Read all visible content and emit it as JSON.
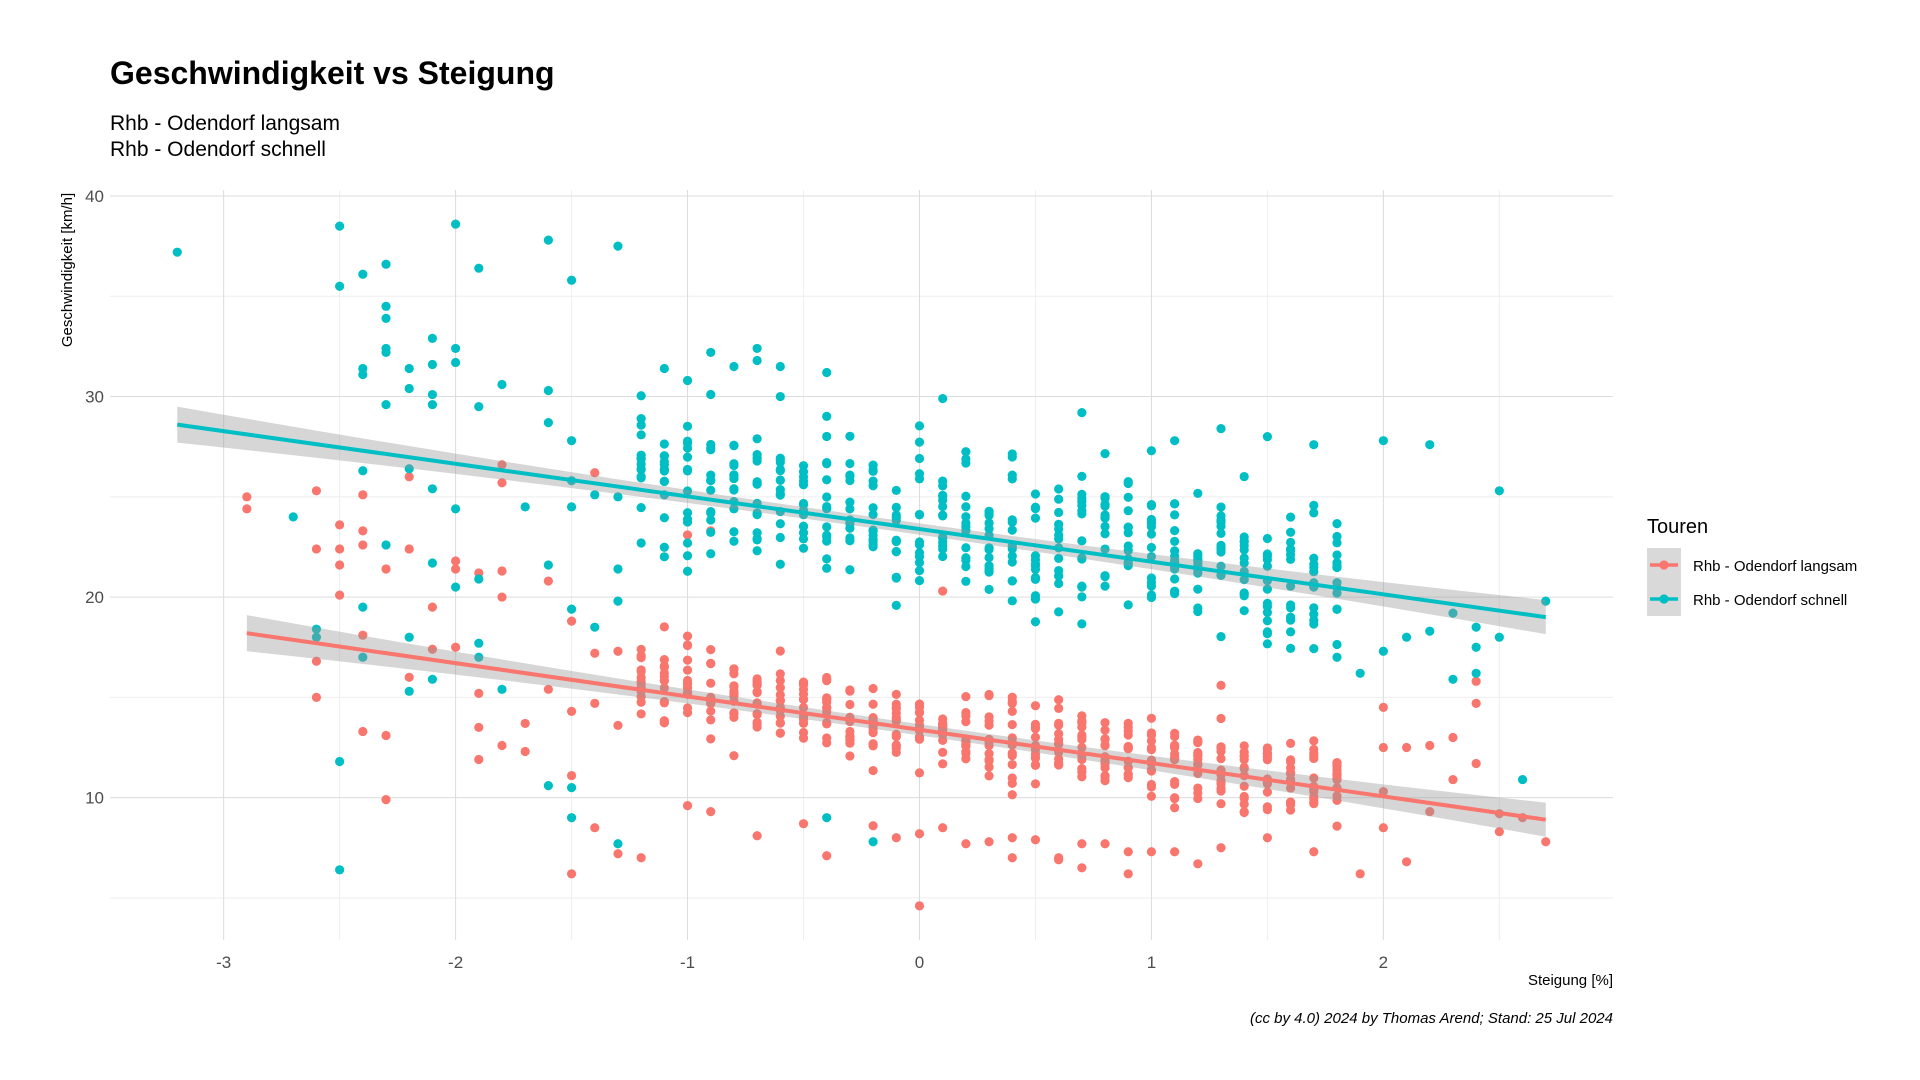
{
  "chart_data": {
    "type": "scatter",
    "title": "Geschwindigkeit vs Steigung",
    "subtitle_lines": [
      "Rhb - Odendorf langsam",
      "Rhb - Odendorf schnell"
    ],
    "xlabel": "Steigung [%]",
    "ylabel": "Geschwindigkeit [km/h]",
    "caption": "(cc by 4.0) 2024 by Thomas Arend; Stand: 25 Jul 2024",
    "xlim": [
      -3.49,
      2.99
    ],
    "ylim": [
      2.9,
      40.3
    ],
    "x_ticks": [
      -3,
      -2,
      -1,
      0,
      1,
      2
    ],
    "y_ticks": [
      10,
      20,
      30,
      40
    ],
    "grid": true,
    "legend": {
      "title": "Touren",
      "position": "right"
    },
    "series": [
      {
        "name": "Rhb - Odendorf langsam",
        "color": "#F8766D",
        "trend": {
          "x": [
            -2.9,
            2.7
          ],
          "y": [
            18.2,
            8.9
          ]
        },
        "points_explicit": [
          [
            -2.9,
            25.0
          ],
          [
            -2.9,
            24.4
          ],
          [
            -2.6,
            25.3
          ],
          [
            -2.6,
            22.4
          ],
          [
            -2.6,
            16.8
          ],
          [
            -2.6,
            15.0
          ],
          [
            -2.5,
            23.6
          ],
          [
            -2.5,
            22.4
          ],
          [
            -2.5,
            21.6
          ],
          [
            -2.5,
            20.1
          ],
          [
            -2.4,
            25.1
          ],
          [
            -2.4,
            23.3
          ],
          [
            -2.4,
            22.6
          ],
          [
            -2.4,
            18.1
          ],
          [
            -2.4,
            13.3
          ],
          [
            -2.3,
            21.4
          ],
          [
            -2.3,
            13.1
          ],
          [
            -2.3,
            9.9
          ],
          [
            -2.2,
            26.0
          ],
          [
            -2.2,
            22.4
          ],
          [
            -2.2,
            16.0
          ],
          [
            -2.1,
            19.5
          ],
          [
            -2.1,
            17.4
          ],
          [
            -2.0,
            21.8
          ],
          [
            -2.0,
            21.4
          ],
          [
            -2.0,
            17.5
          ],
          [
            -1.9,
            21.2
          ],
          [
            -1.9,
            15.2
          ],
          [
            -1.9,
            13.5
          ],
          [
            -1.9,
            11.9
          ],
          [
            -1.8,
            26.6
          ],
          [
            -1.8,
            25.7
          ],
          [
            -1.8,
            21.3
          ],
          [
            -1.8,
            20.0
          ],
          [
            -1.8,
            12.6
          ],
          [
            -1.7,
            13.7
          ],
          [
            -1.7,
            12.3
          ],
          [
            -1.6,
            20.8
          ],
          [
            -1.6,
            15.4
          ],
          [
            -1.5,
            18.8
          ],
          [
            -1.5,
            14.3
          ],
          [
            -1.5,
            11.1
          ],
          [
            -1.5,
            6.2
          ],
          [
            -1.4,
            26.2
          ],
          [
            -1.4,
            17.2
          ],
          [
            -1.4,
            14.7
          ],
          [
            -1.4,
            8.5
          ],
          [
            -1.3,
            17.3
          ],
          [
            -1.3,
            13.6
          ],
          [
            -1.3,
            7.2
          ],
          [
            -1.2,
            7.0
          ],
          [
            -1.0,
            23.1
          ],
          [
            -1.0,
            9.6
          ],
          [
            -0.9,
            23.3
          ],
          [
            -0.9,
            9.3
          ],
          [
            -0.7,
            8.1
          ],
          [
            -0.5,
            8.7
          ],
          [
            -0.4,
            7.1
          ],
          [
            -0.2,
            8.6
          ],
          [
            -0.1,
            8.0
          ],
          [
            0.0,
            4.6
          ],
          [
            0.0,
            8.2
          ],
          [
            0.1,
            20.3
          ],
          [
            0.1,
            8.5
          ],
          [
            0.2,
            7.7
          ],
          [
            0.3,
            7.8
          ],
          [
            0.4,
            7.0
          ],
          [
            0.4,
            8.0
          ],
          [
            0.5,
            7.9
          ],
          [
            0.6,
            7.0
          ],
          [
            0.6,
            6.9
          ],
          [
            0.7,
            6.5
          ],
          [
            0.7,
            7.7
          ],
          [
            0.8,
            7.7
          ],
          [
            0.9,
            7.3
          ],
          [
            0.9,
            6.2
          ],
          [
            1.0,
            7.3
          ],
          [
            1.1,
            7.3
          ],
          [
            1.2,
            6.7
          ],
          [
            1.3,
            7.5
          ],
          [
            1.3,
            15.6
          ],
          [
            1.5,
            8.0
          ],
          [
            1.7,
            7.3
          ],
          [
            1.9,
            6.2
          ],
          [
            2.0,
            14.5
          ],
          [
            2.0,
            12.5
          ],
          [
            2.0,
            10.3
          ],
          [
            2.0,
            8.5
          ],
          [
            2.1,
            12.5
          ],
          [
            2.1,
            6.8
          ],
          [
            2.2,
            12.6
          ],
          [
            2.2,
            9.3
          ],
          [
            2.3,
            13.0
          ],
          [
            2.3,
            10.9
          ],
          [
            2.4,
            15.8
          ],
          [
            2.4,
            14.7
          ],
          [
            2.4,
            11.7
          ],
          [
            2.5,
            9.2
          ],
          [
            2.5,
            8.3
          ],
          [
            2.6,
            9.0
          ],
          [
            2.7,
            7.8
          ]
        ],
        "points_cloud": {
          "x_values": [
            -1.2,
            -1.1,
            -1.0,
            -0.9,
            -0.8,
            -0.7,
            -0.6,
            -0.5,
            -0.4,
            -0.3,
            -0.2,
            -0.1,
            0.0,
            0.1,
            0.2,
            0.3,
            0.4,
            0.5,
            0.6,
            0.7,
            0.8,
            0.9,
            1.0,
            1.1,
            1.2,
            1.3,
            1.4,
            1.5,
            1.6,
            1.7,
            1.8
          ],
          "points_per_x": 14,
          "y_center_intercept": 13.7,
          "y_center_slope": -1.65,
          "y_spread": 2.4
        }
      },
      {
        "name": "Rhb - Odendorf schnell",
        "color": "#00BFC4",
        "trend": {
          "x": [
            -3.2,
            2.7
          ],
          "y": [
            28.6,
            19.0
          ]
        },
        "points_explicit": [
          [
            -3.2,
            37.2
          ],
          [
            -2.7,
            24.0
          ],
          [
            -2.6,
            18.4
          ],
          [
            -2.6,
            18.0
          ],
          [
            -2.5,
            38.5
          ],
          [
            -2.5,
            35.5
          ],
          [
            -2.5,
            11.8
          ],
          [
            -2.5,
            6.4
          ],
          [
            -2.4,
            36.1
          ],
          [
            -2.4,
            31.4
          ],
          [
            -2.4,
            31.1
          ],
          [
            -2.4,
            26.3
          ],
          [
            -2.4,
            19.5
          ],
          [
            -2.4,
            17.0
          ],
          [
            -2.3,
            36.6
          ],
          [
            -2.3,
            34.5
          ],
          [
            -2.3,
            33.9
          ],
          [
            -2.3,
            32.4
          ],
          [
            -2.3,
            32.2
          ],
          [
            -2.3,
            29.6
          ],
          [
            -2.3,
            22.6
          ],
          [
            -2.2,
            31.4
          ],
          [
            -2.2,
            30.4
          ],
          [
            -2.2,
            26.4
          ],
          [
            -2.2,
            18.0
          ],
          [
            -2.2,
            15.3
          ],
          [
            -2.1,
            32.9
          ],
          [
            -2.1,
            31.6
          ],
          [
            -2.1,
            30.1
          ],
          [
            -2.1,
            29.6
          ],
          [
            -2.1,
            25.4
          ],
          [
            -2.1,
            21.7
          ],
          [
            -2.1,
            15.9
          ],
          [
            -2.0,
            38.6
          ],
          [
            -2.0,
            32.4
          ],
          [
            -2.0,
            31.7
          ],
          [
            -2.0,
            24.4
          ],
          [
            -2.0,
            20.5
          ],
          [
            -1.9,
            36.4
          ],
          [
            -1.9,
            29.5
          ],
          [
            -1.9,
            20.9
          ],
          [
            -1.9,
            17.7
          ],
          [
            -1.9,
            17.0
          ],
          [
            -1.8,
            30.6
          ],
          [
            -1.8,
            15.4
          ],
          [
            -1.7,
            24.5
          ],
          [
            -1.6,
            37.8
          ],
          [
            -1.6,
            30.3
          ],
          [
            -1.6,
            28.7
          ],
          [
            -1.6,
            21.6
          ],
          [
            -1.6,
            10.6
          ],
          [
            -1.5,
            35.8
          ],
          [
            -1.5,
            27.8
          ],
          [
            -1.5,
            25.8
          ],
          [
            -1.5,
            24.5
          ],
          [
            -1.5,
            19.4
          ],
          [
            -1.5,
            10.5
          ],
          [
            -1.5,
            9.0
          ],
          [
            -1.4,
            25.1
          ],
          [
            -1.4,
            18.5
          ],
          [
            -1.3,
            37.5
          ],
          [
            -1.3,
            25.0
          ],
          [
            -1.3,
            21.4
          ],
          [
            -1.3,
            19.8
          ],
          [
            -1.3,
            7.7
          ],
          [
            -1.1,
            31.4
          ],
          [
            -1.0,
            30.8
          ],
          [
            -0.9,
            32.2
          ],
          [
            -0.8,
            31.5
          ],
          [
            -0.7,
            32.4
          ],
          [
            -0.7,
            31.8
          ],
          [
            -0.6,
            31.5
          ],
          [
            -0.6,
            30.0
          ],
          [
            -0.4,
            31.2
          ],
          [
            -0.4,
            9.0
          ],
          [
            -0.2,
            7.8
          ],
          [
            0.1,
            29.9
          ],
          [
            0.7,
            29.2
          ],
          [
            1.0,
            27.3
          ],
          [
            1.1,
            27.8
          ],
          [
            1.3,
            28.4
          ],
          [
            1.5,
            28.0
          ],
          [
            1.7,
            27.6
          ],
          [
            2.0,
            27.8
          ],
          [
            2.2,
            27.6
          ],
          [
            1.9,
            16.2
          ],
          [
            1.8,
            17.0
          ],
          [
            2.0,
            17.3
          ],
          [
            2.1,
            18.0
          ],
          [
            2.2,
            18.3
          ],
          [
            2.3,
            19.2
          ],
          [
            2.3,
            15.9
          ],
          [
            2.4,
            18.5
          ],
          [
            2.4,
            17.5
          ],
          [
            2.4,
            16.2
          ],
          [
            2.5,
            25.3
          ],
          [
            2.5,
            18.0
          ],
          [
            2.6,
            10.9
          ],
          [
            2.7,
            19.8
          ]
        ],
        "points_cloud": {
          "x_values": [
            -1.2,
            -1.1,
            -1.0,
            -0.9,
            -0.8,
            -0.7,
            -0.6,
            -0.5,
            -0.4,
            -0.3,
            -0.2,
            -0.1,
            0.0,
            0.1,
            0.2,
            0.3,
            0.4,
            0.5,
            0.6,
            0.7,
            0.8,
            0.9,
            1.0,
            1.1,
            1.2,
            1.3,
            1.4,
            1.5,
            1.6,
            1.7,
            1.8
          ],
          "points_per_x": 14,
          "y_center_intercept": 23.8,
          "y_center_slope": -1.6,
          "y_spread": 4.0
        }
      }
    ]
  }
}
